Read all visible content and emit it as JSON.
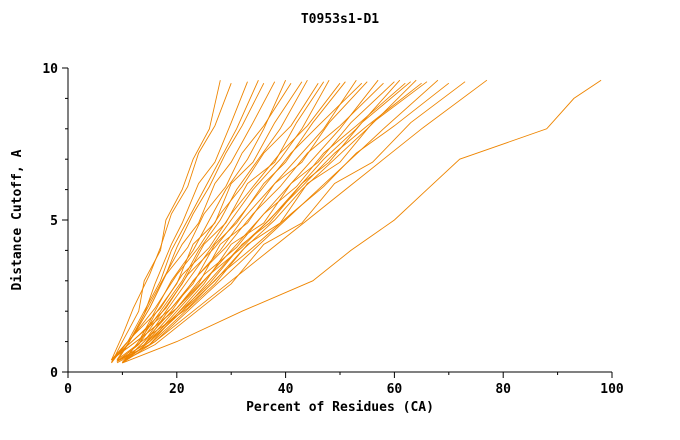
{
  "chart_data": {
    "type": "line",
    "title": "T0953s1-D1",
    "xlabel": "Percent of Residues (CA)",
    "ylabel": "Distance Cutoff, A",
    "xlim": [
      0,
      100
    ],
    "ylim": [
      0,
      10
    ],
    "xticks": [
      0,
      20,
      40,
      60,
      80,
      100
    ],
    "yticks": [
      0,
      5,
      10
    ],
    "x_minor_step": 10,
    "y_minor_step": 1,
    "grid": false,
    "legend": "none",
    "line_color": "#ee8500",
    "series": [
      [
        [
          8,
          0.3
        ],
        [
          10,
          1
        ],
        [
          13,
          2
        ],
        [
          14,
          3
        ],
        [
          17,
          4
        ],
        [
          18,
          5
        ],
        [
          21,
          6
        ],
        [
          23,
          7
        ],
        [
          26,
          8
        ],
        [
          28,
          9.6
        ]
      ],
      [
        [
          8,
          0.4
        ],
        [
          10,
          1.2
        ],
        [
          12,
          2.1
        ],
        [
          15,
          3.2
        ],
        [
          17,
          4.1
        ],
        [
          19,
          5.2
        ],
        [
          22,
          6.1
        ],
        [
          24,
          7.2
        ],
        [
          27,
          8.1
        ],
        [
          30,
          9.5
        ]
      ],
      [
        [
          9,
          0.35
        ],
        [
          11,
          0.9
        ],
        [
          14,
          1.9
        ],
        [
          16,
          2.9
        ],
        [
          19,
          4.2
        ],
        [
          21,
          4.9
        ],
        [
          24,
          6.2
        ],
        [
          27,
          6.9
        ],
        [
          30,
          8.2
        ],
        [
          33,
          9.55
        ]
      ],
      [
        [
          8,
          0.3
        ],
        [
          11,
          1
        ],
        [
          14,
          2
        ],
        [
          17,
          3
        ],
        [
          19,
          4
        ],
        [
          22,
          5
        ],
        [
          25,
          6
        ],
        [
          28,
          7
        ],
        [
          31,
          8
        ],
        [
          35,
          9.6
        ]
      ],
      [
        [
          9,
          0.4
        ],
        [
          12,
          1.2
        ],
        [
          15,
          2.1
        ],
        [
          18,
          3.2
        ],
        [
          20,
          4.1
        ],
        [
          23,
          5.2
        ],
        [
          26,
          6.1
        ],
        [
          29,
          7.2
        ],
        [
          32,
          8.1
        ],
        [
          36,
          9.5
        ]
      ],
      [
        [
          8,
          0.35
        ],
        [
          11,
          0.9
        ],
        [
          14,
          1.9
        ],
        [
          17,
          2.9
        ],
        [
          21,
          4.2
        ],
        [
          24,
          4.9
        ],
        [
          27,
          6.2
        ],
        [
          30,
          6.9
        ],
        [
          34,
          8.2
        ],
        [
          38,
          9.55
        ]
      ],
      [
        [
          10,
          0.3
        ],
        [
          13,
          1
        ],
        [
          16,
          2
        ],
        [
          19,
          3
        ],
        [
          23,
          4
        ],
        [
          26,
          5
        ],
        [
          29,
          6
        ],
        [
          33,
          7
        ],
        [
          36,
          8
        ],
        [
          40,
          9.6
        ]
      ],
      [
        [
          8,
          0.4
        ],
        [
          12,
          1.2
        ],
        [
          15,
          2.1
        ],
        [
          18,
          3.2
        ],
        [
          22,
          4.1
        ],
        [
          25,
          5.2
        ],
        [
          29,
          6.1
        ],
        [
          32,
          7.2
        ],
        [
          36,
          8.1
        ],
        [
          41,
          9.5
        ]
      ],
      [
        [
          9,
          0.35
        ],
        [
          13,
          0.9
        ],
        [
          16,
          1.9
        ],
        [
          20,
          2.9
        ],
        [
          23,
          4.2
        ],
        [
          27,
          4.9
        ],
        [
          30,
          6.2
        ],
        [
          34,
          6.9
        ],
        [
          38,
          8.2
        ],
        [
          43,
          9.55
        ]
      ],
      [
        [
          10,
          0.3
        ],
        [
          13,
          1
        ],
        [
          17,
          2
        ],
        [
          21,
          3
        ],
        [
          24,
          4
        ],
        [
          28,
          5
        ],
        [
          31,
          6
        ],
        [
          35,
          7
        ],
        [
          39,
          8
        ],
        [
          44,
          9.6
        ]
      ],
      [
        [
          8,
          0.4
        ],
        [
          12,
          1.2
        ],
        [
          16,
          2.1
        ],
        [
          20,
          3.2
        ],
        [
          24,
          4.1
        ],
        [
          28,
          5.2
        ],
        [
          32,
          6.1
        ],
        [
          36,
          7.2
        ],
        [
          41,
          8.1
        ],
        [
          46,
          9.5
        ]
      ],
      [
        [
          9,
          0.35
        ],
        [
          13,
          0.9
        ],
        [
          17,
          1.9
        ],
        [
          21,
          2.9
        ],
        [
          25,
          4.2
        ],
        [
          29,
          4.9
        ],
        [
          33,
          6.2
        ],
        [
          38,
          6.9
        ],
        [
          42,
          8.2
        ],
        [
          47,
          9.55
        ]
      ],
      [
        [
          10,
          0.3
        ],
        [
          14,
          1
        ],
        [
          18,
          2
        ],
        [
          22,
          3
        ],
        [
          26,
          4
        ],
        [
          30,
          5
        ],
        [
          34,
          6
        ],
        [
          39,
          7
        ],
        [
          43,
          8
        ],
        [
          48,
          9.6
        ]
      ],
      [
        [
          8,
          0.4
        ],
        [
          12,
          1.2
        ],
        [
          17,
          2.1
        ],
        [
          21,
          3.2
        ],
        [
          26,
          4.1
        ],
        [
          30,
          5.2
        ],
        [
          34,
          6.1
        ],
        [
          39,
          7.2
        ],
        [
          44,
          8.1
        ],
        [
          50,
          9.5
        ]
      ],
      [
        [
          9,
          0.35
        ],
        [
          14,
          0.9
        ],
        [
          18,
          1.9
        ],
        [
          23,
          2.9
        ],
        [
          27,
          4.2
        ],
        [
          31,
          4.9
        ],
        [
          36,
          6.2
        ],
        [
          40,
          6.9
        ],
        [
          45,
          8.2
        ],
        [
          51,
          9.55
        ]
      ],
      [
        [
          10,
          0.3
        ],
        [
          14,
          1
        ],
        [
          19,
          2
        ],
        [
          23,
          3
        ],
        [
          28,
          4
        ],
        [
          32,
          5
        ],
        [
          37,
          6
        ],
        [
          42,
          7
        ],
        [
          47,
          8
        ],
        [
          53,
          9.6
        ]
      ],
      [
        [
          8,
          0.4
        ],
        [
          13,
          1.2
        ],
        [
          18,
          2.1
        ],
        [
          22,
          3.2
        ],
        [
          27,
          4.1
        ],
        [
          32,
          5.2
        ],
        [
          36,
          6.1
        ],
        [
          41,
          7.2
        ],
        [
          46,
          8.1
        ],
        [
          54,
          9.5
        ]
      ],
      [
        [
          9,
          0.35
        ],
        [
          14,
          0.9
        ],
        [
          19,
          1.9
        ],
        [
          24,
          2.9
        ],
        [
          28,
          4.2
        ],
        [
          33,
          4.9
        ],
        [
          38,
          6.2
        ],
        [
          43,
          6.9
        ],
        [
          48,
          8.2
        ],
        [
          55,
          9.55
        ]
      ],
      [
        [
          10,
          0.3
        ],
        [
          15,
          1
        ],
        [
          20,
          2
        ],
        [
          25,
          3
        ],
        [
          30,
          4
        ],
        [
          35,
          5
        ],
        [
          40,
          6
        ],
        [
          45,
          7
        ],
        [
          50,
          8
        ],
        [
          57,
          9.6
        ]
      ],
      [
        [
          8,
          0.4
        ],
        [
          13,
          1.2
        ],
        [
          19,
          2.1
        ],
        [
          24,
          3.2
        ],
        [
          29,
          4.1
        ],
        [
          34,
          5.2
        ],
        [
          39,
          6.1
        ],
        [
          44,
          7.2
        ],
        [
          50,
          8.1
        ],
        [
          58,
          9.5
        ]
      ],
      [
        [
          9,
          0.35
        ],
        [
          14,
          0.9
        ],
        [
          20,
          1.9
        ],
        [
          25,
          2.9
        ],
        [
          30,
          4.2
        ],
        [
          36,
          4.9
        ],
        [
          41,
          6.2
        ],
        [
          46,
          6.9
        ],
        [
          52,
          8.2
        ],
        [
          60,
          9.55
        ]
      ],
      [
        [
          10,
          0.3
        ],
        [
          15,
          1
        ],
        [
          21,
          2
        ],
        [
          26,
          3
        ],
        [
          31,
          4
        ],
        [
          37,
          5
        ],
        [
          42,
          6
        ],
        [
          47,
          7
        ],
        [
          53,
          8
        ],
        [
          61,
          9.6
        ]
      ],
      [
        [
          8,
          0.4
        ],
        [
          14,
          1.2
        ],
        [
          20,
          2.1
        ],
        [
          25,
          3.2
        ],
        [
          31,
          4.1
        ],
        [
          36,
          5.2
        ],
        [
          42,
          6.1
        ],
        [
          47,
          7.2
        ],
        [
          53,
          8.1
        ],
        [
          62,
          9.5
        ]
      ],
      [
        [
          9,
          0.35
        ],
        [
          15,
          0.9
        ],
        [
          20,
          1.9
        ],
        [
          26,
          2.9
        ],
        [
          32,
          4.2
        ],
        [
          37,
          4.9
        ],
        [
          43,
          6.2
        ],
        [
          48,
          6.9
        ],
        [
          54,
          8.2
        ],
        [
          63,
          9.55
        ]
      ],
      [
        [
          10,
          0.3
        ],
        [
          15,
          1
        ],
        [
          21,
          2
        ],
        [
          27,
          3
        ],
        [
          32,
          4
        ],
        [
          38,
          5
        ],
        [
          43,
          6
        ],
        [
          49,
          7
        ],
        [
          55,
          8
        ],
        [
          64,
          9.6
        ]
      ],
      [
        [
          8,
          0.4
        ],
        [
          14,
          1.2
        ],
        [
          20,
          2.1
        ],
        [
          26,
          3.2
        ],
        [
          32,
          4.1
        ],
        [
          38,
          5.2
        ],
        [
          43,
          6.1
        ],
        [
          49,
          7.2
        ],
        [
          55,
          8.1
        ],
        [
          65,
          9.5
        ]
      ],
      [
        [
          9,
          0.35
        ],
        [
          15,
          0.9
        ],
        [
          21,
          1.9
        ],
        [
          27,
          2.9
        ],
        [
          33,
          4.2
        ],
        [
          39,
          4.9
        ],
        [
          44,
          6.2
        ],
        [
          50,
          6.9
        ],
        [
          56,
          8.2
        ],
        [
          66,
          9.55
        ]
      ],
      [
        [
          10,
          0.3
        ],
        [
          16,
          1
        ],
        [
          22,
          2
        ],
        [
          28,
          3
        ],
        [
          34,
          4
        ],
        [
          40,
          5
        ],
        [
          46,
          6
        ],
        [
          52,
          7
        ],
        [
          58,
          8
        ],
        [
          68,
          9.6
        ]
      ],
      [
        [
          9,
          0.4
        ],
        [
          15,
          1.2
        ],
        [
          22,
          2.1
        ],
        [
          28,
          3.2
        ],
        [
          34,
          4.1
        ],
        [
          41,
          5.2
        ],
        [
          47,
          6.1
        ],
        [
          53,
          7.2
        ],
        [
          60,
          8.1
        ],
        [
          70,
          9.5
        ]
      ],
      [
        [
          10,
          0.35
        ],
        [
          16,
          0.9
        ],
        [
          23,
          1.9
        ],
        [
          30,
          2.9
        ],
        [
          36,
          4.2
        ],
        [
          43,
          4.9
        ],
        [
          49,
          6.2
        ],
        [
          56,
          6.9
        ],
        [
          63,
          8.2
        ],
        [
          73,
          9.55
        ]
      ],
      [
        [
          9,
          0.3
        ],
        [
          16,
          1
        ],
        [
          23,
          2
        ],
        [
          30,
          3
        ],
        [
          37,
          4
        ],
        [
          44,
          5
        ],
        [
          51,
          6
        ],
        [
          58,
          7
        ],
        [
          65,
          8
        ],
        [
          77,
          9.6
        ]
      ],
      [
        [
          10,
          0.3
        ],
        [
          20,
          1
        ],
        [
          32,
          2
        ],
        [
          45,
          3
        ],
        [
          52,
          4
        ],
        [
          60,
          5
        ],
        [
          66,
          6
        ],
        [
          72,
          7
        ],
        [
          88,
          8
        ],
        [
          93,
          9
        ],
        [
          98,
          9.6
        ]
      ]
    ]
  }
}
